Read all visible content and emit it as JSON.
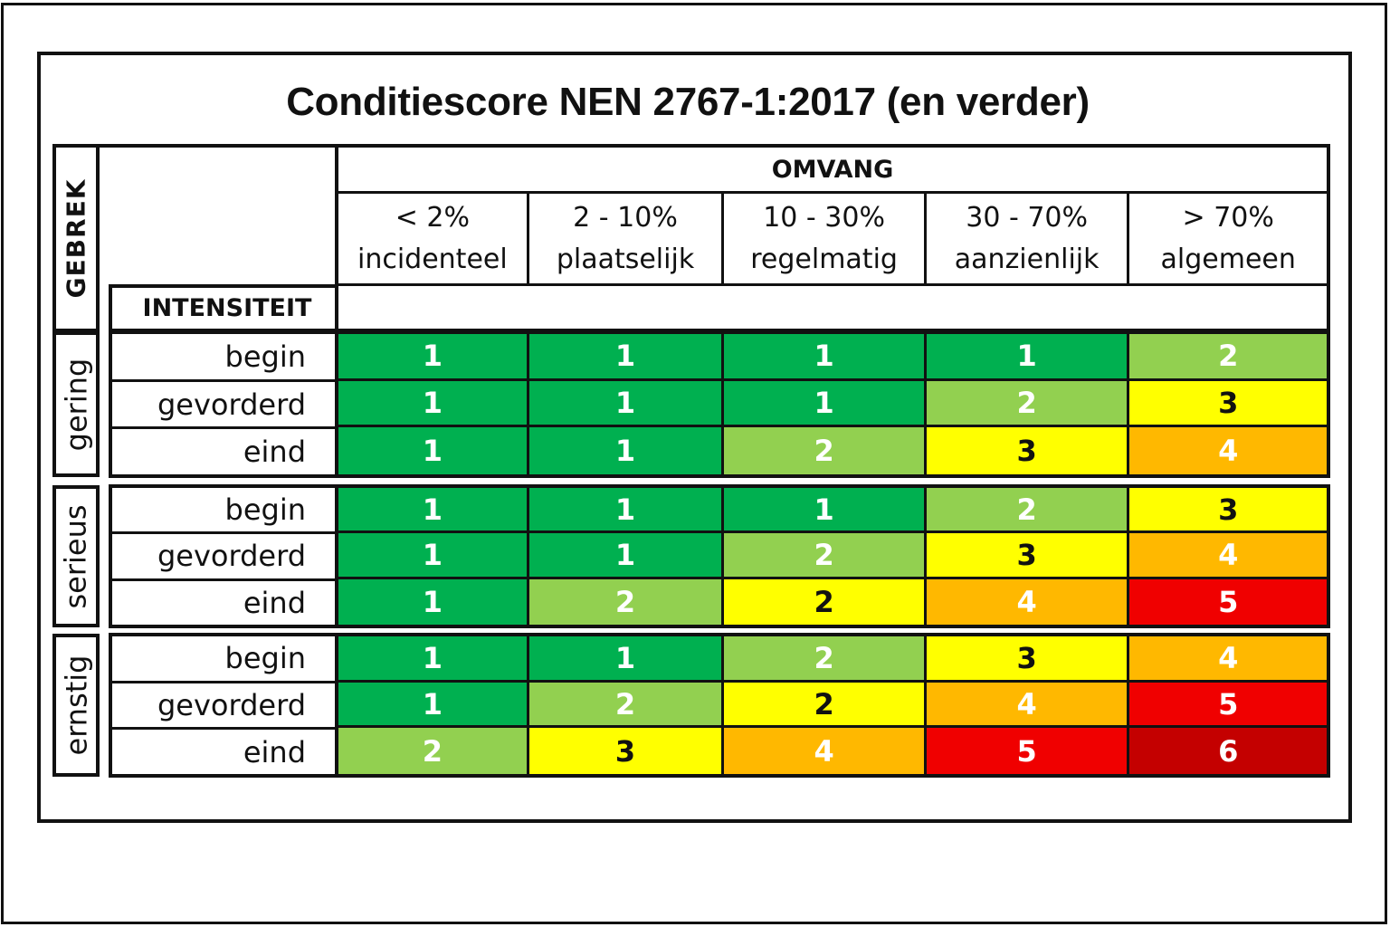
{
  "title": "Conditiescore NEN 2767-1:2017 (en verder)",
  "headers": {
    "defect_axis": "GEBREK",
    "extent_axis": "OMVANG",
    "intensity_axis": "INTENSITEIT"
  },
  "columns": [
    {
      "range": "< 2%",
      "label": "incidenteel"
    },
    {
      "range": "2 - 10%",
      "label": "plaatselijk"
    },
    {
      "range": "10 - 30%",
      "label": "regelmatig"
    },
    {
      "range": "30 - 70%",
      "label": "aanzienlijk"
    },
    {
      "range": "> 70%",
      "label": "algemeen"
    }
  ],
  "score_colors": {
    "1": {
      "bg": "#00B050",
      "fg": "#ffffff"
    },
    "2": {
      "bg": "#92D050",
      "fg": "#ffffff"
    },
    "3": {
      "bg": "#FFFF00",
      "fg": "#111111"
    },
    "4": {
      "bg": "#FFB800",
      "fg": "#ffffff"
    },
    "5": {
      "bg": "#F00000",
      "fg": "#ffffff"
    },
    "6": {
      "bg": "#C40000",
      "fg": "#ffffff"
    },
    "2y": {
      "bg": "#FFFF00",
      "fg": "#111111"
    }
  },
  "groups": [
    {
      "severity": "gering",
      "rows": [
        {
          "intensity": "begin",
          "scores": [
            "1",
            "1",
            "1",
            "1",
            "2"
          ],
          "colors": [
            "1",
            "1",
            "1",
            "1",
            "2"
          ]
        },
        {
          "intensity": "gevorderd",
          "scores": [
            "1",
            "1",
            "1",
            "2",
            "3"
          ],
          "colors": [
            "1",
            "1",
            "1",
            "2",
            "3"
          ]
        },
        {
          "intensity": "eind",
          "scores": [
            "1",
            "1",
            "2",
            "3",
            "4"
          ],
          "colors": [
            "1",
            "1",
            "2",
            "3",
            "4"
          ]
        }
      ]
    },
    {
      "severity": "serieus",
      "rows": [
        {
          "intensity": "begin",
          "scores": [
            "1",
            "1",
            "1",
            "2",
            "3"
          ],
          "colors": [
            "1",
            "1",
            "1",
            "2",
            "3"
          ]
        },
        {
          "intensity": "gevorderd",
          "scores": [
            "1",
            "1",
            "2",
            "3",
            "4"
          ],
          "colors": [
            "1",
            "1",
            "2",
            "3",
            "4"
          ]
        },
        {
          "intensity": "eind",
          "scores": [
            "1",
            "2",
            "2",
            "4",
            "5"
          ],
          "colors": [
            "1",
            "2",
            "2y",
            "4",
            "5"
          ]
        }
      ]
    },
    {
      "severity": "ernstig",
      "rows": [
        {
          "intensity": "begin",
          "scores": [
            "1",
            "1",
            "2",
            "3",
            "4"
          ],
          "colors": [
            "1",
            "1",
            "2",
            "3",
            "4"
          ]
        },
        {
          "intensity": "gevorderd",
          "scores": [
            "1",
            "2",
            "2",
            "4",
            "5"
          ],
          "colors": [
            "1",
            "2",
            "2y",
            "4",
            "5"
          ]
        },
        {
          "intensity": "eind",
          "scores": [
            "2",
            "3",
            "4",
            "5",
            "6"
          ],
          "colors": [
            "2",
            "3",
            "4",
            "5",
            "6"
          ]
        }
      ]
    }
  ]
}
